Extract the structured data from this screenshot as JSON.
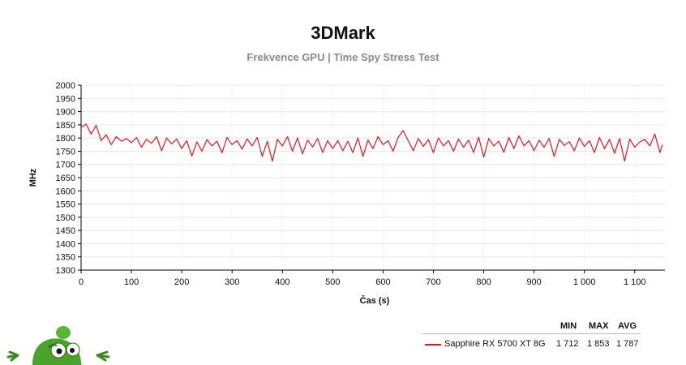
{
  "chart_data": {
    "type": "line",
    "title": "3DMark",
    "subtitle": "Frekvence GPU | Time Spy Stress Test",
    "xlabel": "Čas (s)",
    "ylabel": "MHz",
    "xlim": [
      0,
      1160
    ],
    "ylim": [
      1300,
      2000
    ],
    "x_ticks": [
      0,
      100,
      200,
      300,
      400,
      500,
      600,
      700,
      800,
      900,
      1000,
      1100
    ],
    "x_tick_labels": [
      "0",
      "100",
      "200",
      "300",
      "400",
      "500",
      "600",
      "700",
      "800",
      "900",
      "1 000",
      "1 100"
    ],
    "y_ticks": [
      1300,
      1350,
      1400,
      1450,
      1500,
      1550,
      1600,
      1650,
      1700,
      1750,
      1800,
      1850,
      1900,
      1950,
      2000
    ],
    "grid": true,
    "series": [
      {
        "name": "Sapphire RX 5700 XT 8G",
        "color": "#e8141b",
        "min": "1 712",
        "max": "1 853",
        "avg": "1 787",
        "x": [
          0,
          10,
          20,
          30,
          40,
          50,
          60,
          70,
          80,
          90,
          100,
          110,
          120,
          130,
          140,
          150,
          160,
          170,
          180,
          190,
          200,
          210,
          220,
          230,
          240,
          250,
          260,
          270,
          280,
          290,
          300,
          310,
          320,
          330,
          340,
          350,
          360,
          370,
          380,
          390,
          400,
          410,
          420,
          430,
          440,
          450,
          460,
          470,
          480,
          490,
          500,
          510,
          520,
          530,
          540,
          550,
          560,
          570,
          580,
          590,
          600,
          610,
          620,
          630,
          640,
          650,
          660,
          670,
          680,
          690,
          700,
          710,
          720,
          730,
          740,
          750,
          760,
          770,
          780,
          790,
          800,
          810,
          820,
          830,
          840,
          850,
          860,
          870,
          880,
          890,
          900,
          910,
          920,
          930,
          940,
          950,
          960,
          970,
          980,
          990,
          1000,
          1010,
          1020,
          1030,
          1040,
          1050,
          1060,
          1070,
          1080,
          1090,
          1100,
          1110,
          1120,
          1130,
          1140,
          1150,
          1155
        ],
        "values": [
          1840,
          1853,
          1815,
          1848,
          1790,
          1812,
          1775,
          1805,
          1788,
          1798,
          1782,
          1802,
          1765,
          1795,
          1780,
          1805,
          1752,
          1800,
          1778,
          1796,
          1760,
          1790,
          1732,
          1785,
          1750,
          1794,
          1770,
          1788,
          1744,
          1802,
          1775,
          1790,
          1758,
          1796,
          1770,
          1802,
          1730,
          1788,
          1712,
          1795,
          1770,
          1805,
          1750,
          1800,
          1740,
          1792,
          1766,
          1798,
          1745,
          1790,
          1760,
          1790,
          1752,
          1788,
          1745,
          1800,
          1730,
          1792,
          1760,
          1805,
          1775,
          1790,
          1750,
          1802,
          1828,
          1790,
          1752,
          1798,
          1768,
          1794,
          1745,
          1800,
          1770,
          1790,
          1750,
          1796,
          1765,
          1792,
          1745,
          1803,
          1728,
          1798,
          1770,
          1788,
          1746,
          1802,
          1760,
          1808,
          1770,
          1790,
          1752,
          1792,
          1765,
          1798,
          1730,
          1795,
          1772,
          1786,
          1752,
          1800,
          1768,
          1790,
          1745,
          1802,
          1760,
          1795,
          1742,
          1798,
          1712,
          1796,
          1765,
          1785,
          1795,
          1770,
          1815,
          1745,
          1775
        ]
      }
    ]
  },
  "legend": {
    "headers": {
      "min": "MIN",
      "max": "MAX",
      "avg": "AVG"
    }
  },
  "mascot": {
    "icon": "green-alien-mascot-icon"
  }
}
